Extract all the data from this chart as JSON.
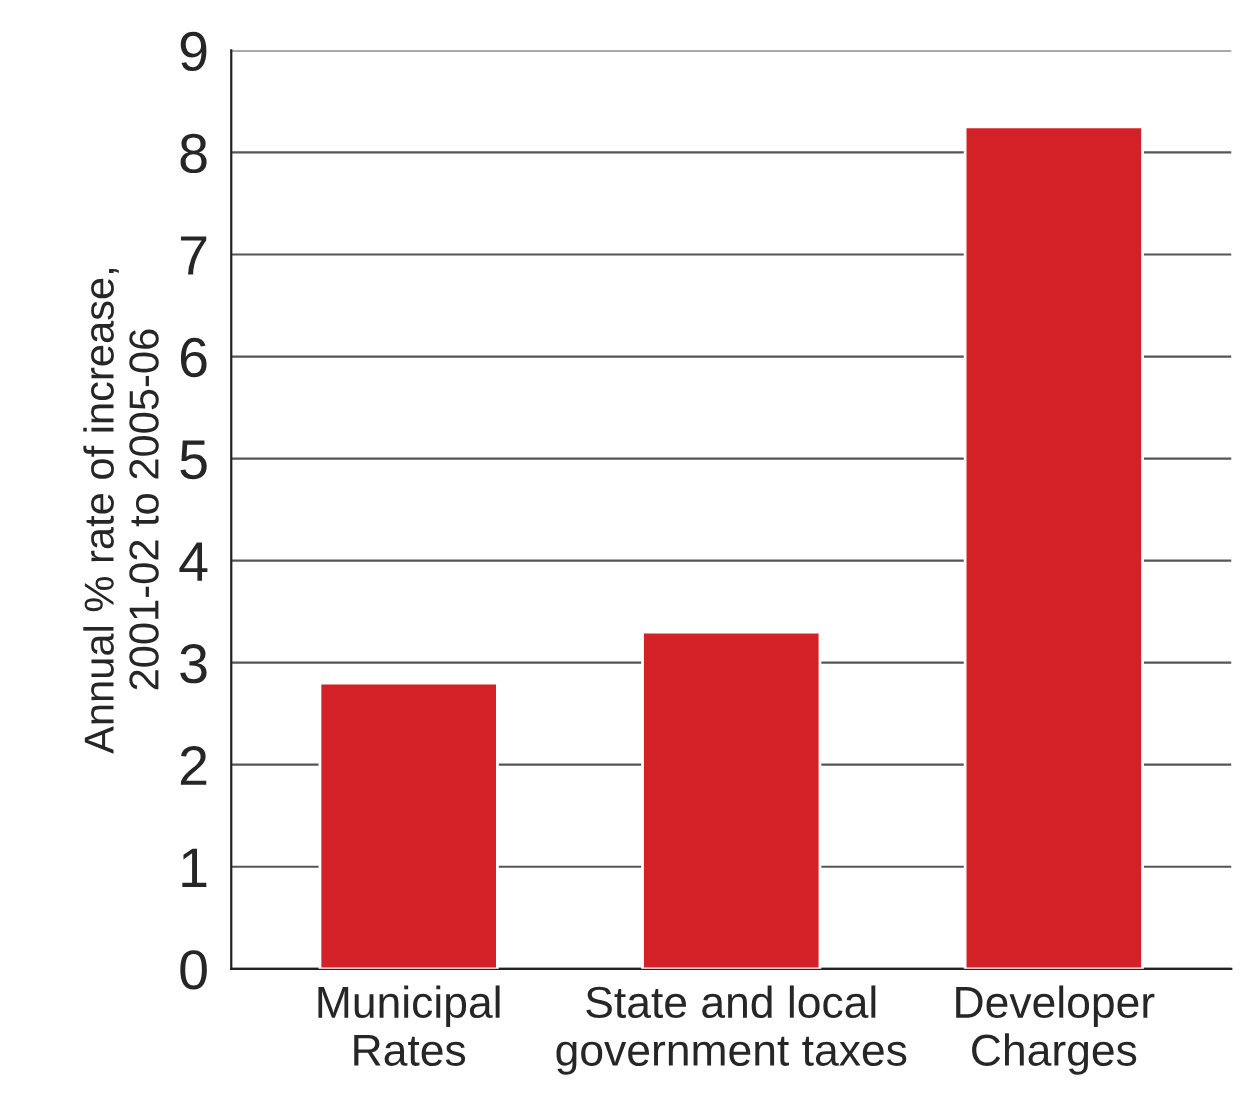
{
  "chart_data": {
    "type": "bar",
    "ylabel": "Annual % rate of increase,\n2001-02 to 2005-06",
    "categories": [
      "Municipal\nRates",
      "State and local\ngovernment taxes",
      "Developer\nCharges"
    ],
    "values": [
      2.8,
      3.3,
      8.25
    ],
    "color": "#d42027",
    "ylim": [
      0,
      9
    ],
    "yticks": [
      0,
      1,
      2,
      3,
      4,
      5,
      6,
      7,
      8,
      9
    ],
    "grid": "y"
  }
}
